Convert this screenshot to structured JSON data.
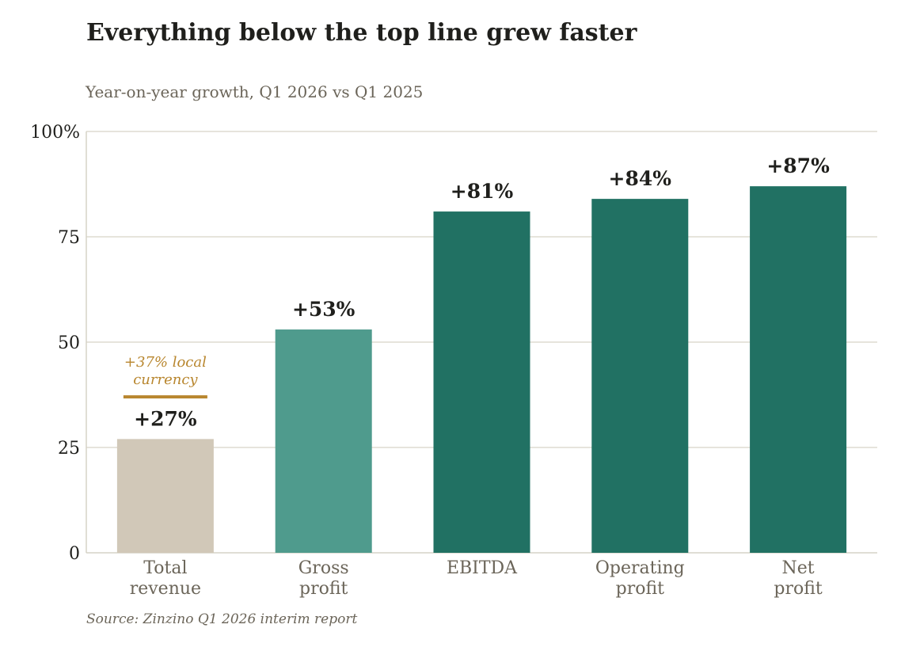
{
  "chart_data": {
    "type": "bar",
    "title": "Everything below the top line grew faster",
    "subtitle": "Year-on-year growth, Q1 2026 vs Q1 2025",
    "source": "Source: Zinzino Q1 2026 interim report",
    "categories": [
      [
        "Total",
        "revenue"
      ],
      [
        "Gross",
        "profit"
      ],
      [
        "EBITDA"
      ],
      [
        "Operating",
        "profit"
      ],
      [
        "Net",
        "profit"
      ]
    ],
    "values": [
      27,
      53,
      81,
      84,
      87
    ],
    "value_labels": [
      "+27%",
      "+53%",
      "+81%",
      "+84%",
      "+87%"
    ],
    "bar_colors": [
      "#d1c8b8",
      "#4f9b8d",
      "#217163",
      "#217163",
      "#217163"
    ],
    "ylim": [
      0,
      100
    ],
    "yticks": [
      0,
      25,
      50,
      75,
      100
    ],
    "ytick_labels": [
      "0",
      "25",
      "50",
      "75",
      "100%"
    ],
    "grid": true,
    "gridline_color": "#d6d3c7",
    "annotation": {
      "category_index": 0,
      "value": 37,
      "lines": [
        "+37% local",
        "currency"
      ],
      "color": "#b8862e"
    }
  }
}
